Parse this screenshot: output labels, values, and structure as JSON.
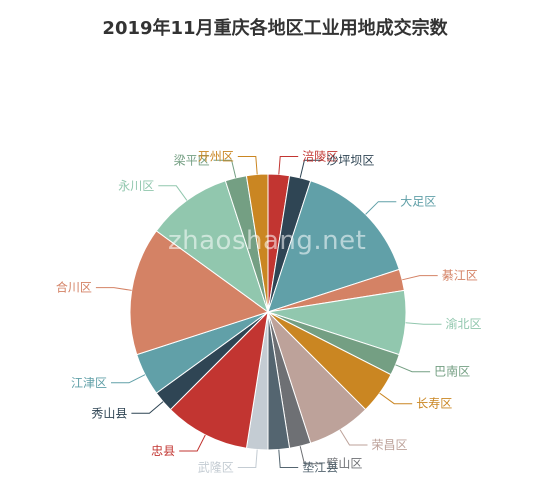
{
  "title": "2019年11月重庆各地区工业用地成交宗数",
  "watermark": "zhaoshang.net",
  "chart_data": {
    "type": "pie",
    "title": "2019年11月重庆各地区工业用地成交宗数",
    "labels": [
      "涪陵区",
      "沙坪坝区",
      "大足区",
      "綦江区",
      "渝北区",
      "巴南区",
      "长寿区",
      "荣昌区",
      "璧山区",
      "垫江县",
      "武隆区",
      "忠县",
      "秀山县",
      "江津区",
      "合川区",
      "永川区",
      "梁平区",
      "开州区"
    ],
    "values": [
      2,
      2,
      12,
      2,
      6,
      2,
      4,
      6,
      2,
      2,
      2,
      8,
      2,
      4,
      12,
      8,
      2,
      2
    ],
    "colors": [
      "#c23531",
      "#2f4554",
      "#61a0a8",
      "#d48265",
      "#91c7ae",
      "#749f83",
      "#ca8622",
      "#bda29a",
      "#6e7074",
      "#546570",
      "#c4ccd3",
      "#c23531",
      "#2f4554",
      "#61a0a8",
      "#d48265",
      "#91c7ae",
      "#749f83",
      "#ca8622"
    ]
  }
}
